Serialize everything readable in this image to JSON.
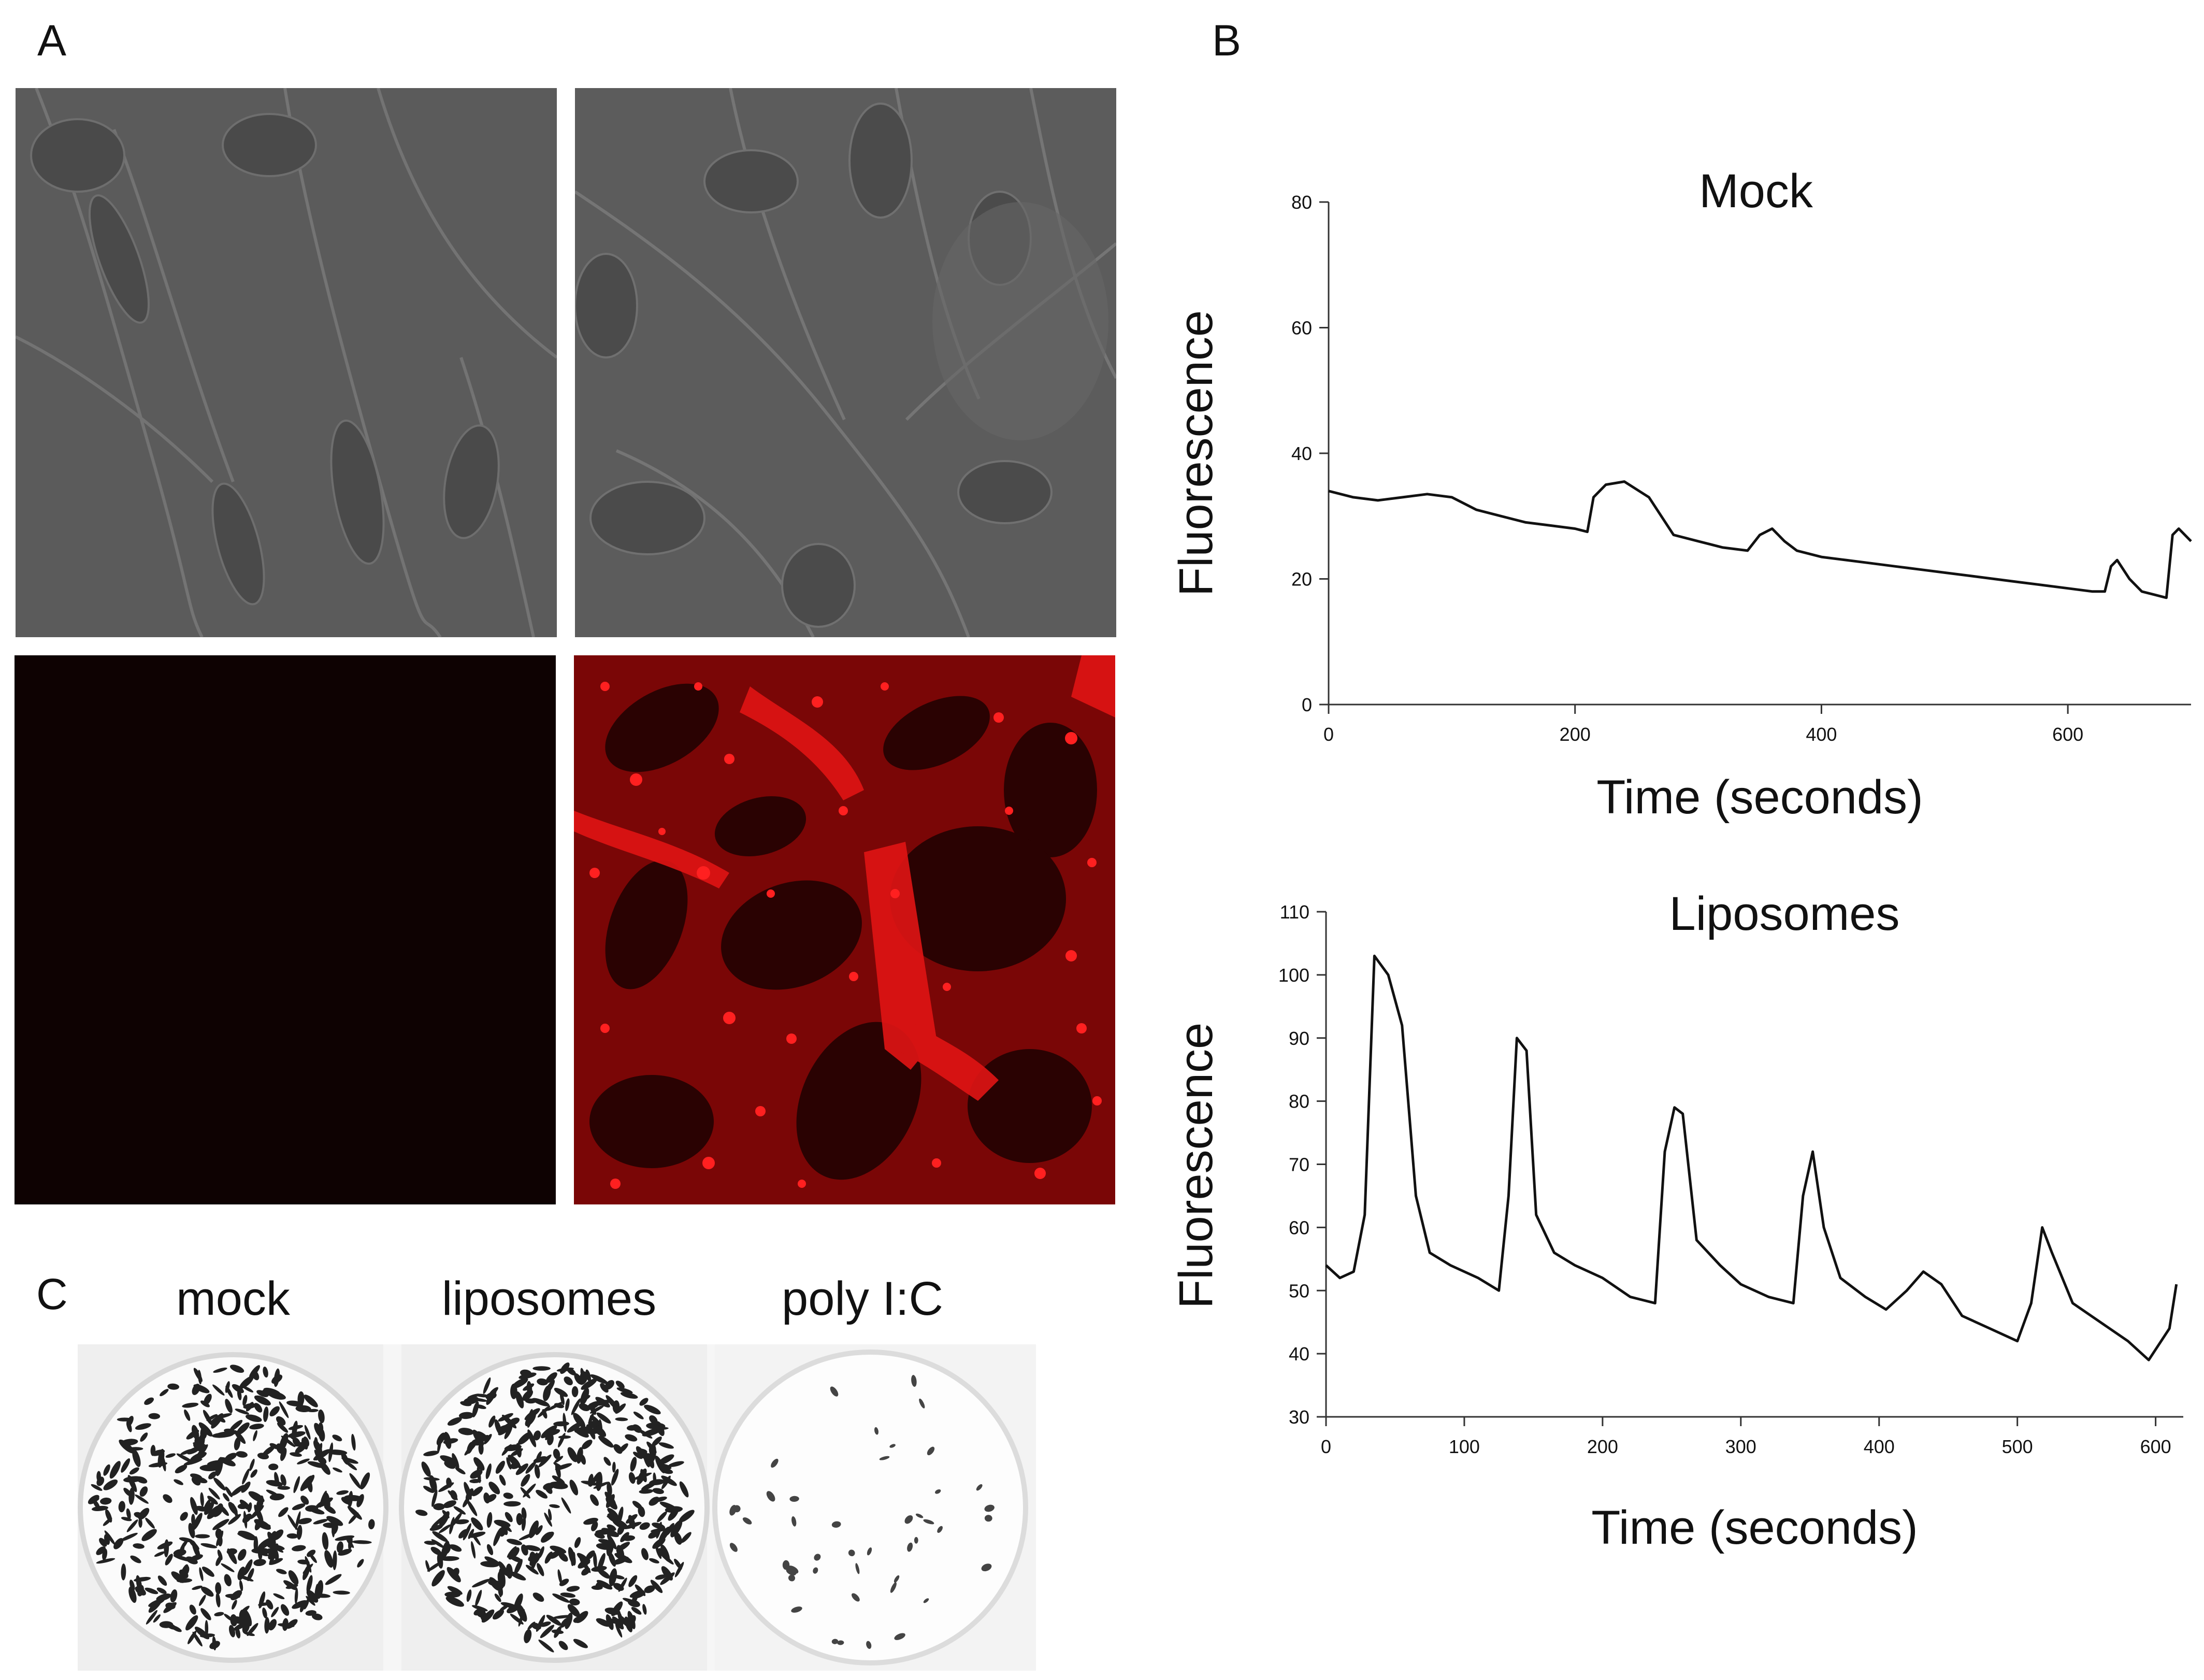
{
  "figure": {
    "panel_a_label": "A",
    "panel_b_label": "B",
    "panel_c_label": "C"
  },
  "panel_a": {
    "images": [
      {
        "kind": "phase-contrast",
        "color": "#5a5a5a"
      },
      {
        "kind": "phase-contrast",
        "color": "#5c5c5c"
      },
      {
        "kind": "fluorescence-empty",
        "color": "#0e0202"
      },
      {
        "kind": "fluorescence-red",
        "color": "#c81010"
      }
    ]
  },
  "panel_c": {
    "labels": [
      "mock",
      "liposomes",
      "poly I:C"
    ],
    "wells": [
      {
        "name": "mock",
        "stain_density": "high"
      },
      {
        "name": "liposomes",
        "stain_density": "high"
      },
      {
        "name": "poly I:C",
        "stain_density": "low"
      }
    ]
  },
  "chart_data": [
    {
      "type": "line",
      "title": "Mock",
      "xlabel": "Time (seconds)",
      "ylabel": "Fluorescence",
      "xlim": [
        0,
        700
      ],
      "ylim": [
        0,
        80
      ],
      "xticks": [
        0,
        200,
        400,
        600
      ],
      "yticks": [
        0,
        20,
        40,
        60,
        80
      ],
      "x": [
        0,
        20,
        40,
        60,
        80,
        100,
        120,
        140,
        160,
        180,
        200,
        210,
        215,
        225,
        240,
        260,
        280,
        300,
        320,
        340,
        350,
        360,
        370,
        380,
        400,
        420,
        440,
        460,
        480,
        500,
        520,
        540,
        560,
        580,
        600,
        620,
        630,
        635,
        640,
        650,
        660,
        670,
        680,
        685,
        690,
        700
      ],
      "y": [
        34,
        33,
        32.5,
        33,
        33.5,
        33,
        31,
        30,
        29,
        28.5,
        28,
        27.5,
        33,
        35,
        35.5,
        33,
        27,
        26,
        25,
        24.5,
        27,
        28,
        26,
        24.5,
        23.5,
        23,
        22.5,
        22,
        21.5,
        21,
        20.5,
        20,
        19.5,
        19,
        18.5,
        18,
        18,
        22,
        23,
        20,
        18,
        17.5,
        17,
        27,
        28,
        26
      ]
    },
    {
      "type": "line",
      "title": "Liposomes",
      "xlabel": "Time (seconds)",
      "ylabel": "Fluorescence",
      "xlim": [
        0,
        620
      ],
      "ylim": [
        30,
        110
      ],
      "xticks": [
        0,
        100,
        200,
        300,
        400,
        500,
        600
      ],
      "yticks": [
        30,
        40,
        50,
        60,
        70,
        80,
        90,
        100,
        110
      ],
      "x": [
        0,
        10,
        20,
        28,
        35,
        45,
        55,
        65,
        75,
        90,
        110,
        125,
        132,
        138,
        145,
        152,
        165,
        180,
        200,
        220,
        238,
        245,
        252,
        258,
        268,
        285,
        300,
        320,
        338,
        345,
        352,
        360,
        372,
        390,
        405,
        420,
        432,
        445,
        460,
        480,
        500,
        510,
        518,
        525,
        540,
        560,
        580,
        595,
        610,
        615
      ],
      "y": [
        54,
        52,
        53,
        62,
        103,
        100,
        92,
        65,
        56,
        54,
        52,
        50,
        65,
        90,
        88,
        62,
        56,
        54,
        52,
        49,
        48,
        72,
        79,
        78,
        58,
        54,
        51,
        49,
        48,
        65,
        72,
        60,
        52,
        49,
        47,
        50,
        53,
        51,
        46,
        44,
        42,
        48,
        60,
        56,
        48,
        45,
        42,
        39,
        44,
        51
      ]
    }
  ]
}
